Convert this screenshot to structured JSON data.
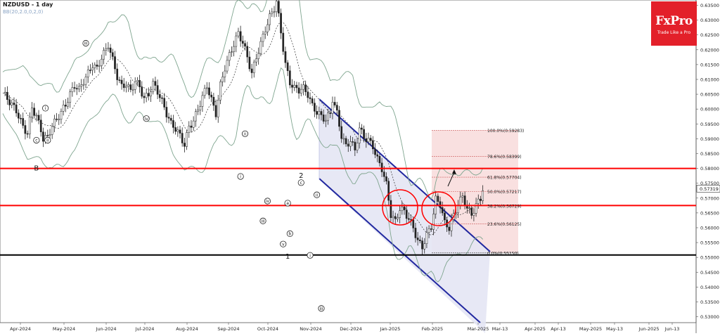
{
  "header": {
    "title": "NZDUSD - 1 day",
    "indicator": "BB(20,2.0,0,2,0)"
  },
  "logo": {
    "brand": "FxPro",
    "tagline": "Trade Like a Pro"
  },
  "colors": {
    "bull": "#1c8a1c",
    "bear": "#c01b1b",
    "candle": "#222222",
    "band": "#7fa58f",
    "sr": "#ff0000",
    "channel": "#2128a0",
    "channel_fill": "#e4e6f4",
    "fib_fill": "#f8dada"
  },
  "chart_data": {
    "type": "candlestick",
    "title": "NZDUSD - 1 day",
    "ylim": [
      0.528,
      0.6363
    ],
    "y_ticks": [
      "0.63500",
      "0.63000",
      "0.62500",
      "0.62000",
      "0.61500",
      "0.61000",
      "0.60500",
      "0.60000",
      "0.59500",
      "0.59000",
      "0.58500",
      "0.58000",
      "0.57500",
      "0.57000",
      "0.56500",
      "0.56000",
      "0.55500",
      "0.55000",
      "0.54500",
      "0.54000",
      "0.53500",
      "0.53000"
    ],
    "x_labels": [
      "Apr-2024",
      "May-2024",
      "Jun-2024",
      "Jul-2024",
      "Aug-2024",
      "Sep-2024",
      "Oct-2024",
      "Nov-2024",
      "Dec-2024",
      "Jan-2025",
      "Feb-2025",
      "Mar-2025",
      "Mar-13",
      "Apr-2025",
      "Apr-13",
      "May-2025",
      "May-13",
      "Jun-2025",
      "Jun-13"
    ],
    "current_price": "0.57319",
    "price_path": [
      [
        0,
        0.6055
      ],
      [
        3,
        0.6025
      ],
      [
        6,
        0.5995
      ],
      [
        9,
        0.594
      ],
      [
        11,
        0.5918
      ],
      [
        13,
        0.6005
      ],
      [
        15,
        0.5975
      ],
      [
        17,
        0.593
      ],
      [
        18,
        0.59
      ],
      [
        20,
        0.5905
      ],
      [
        22,
        0.5945
      ],
      [
        24,
        0.5965
      ],
      [
        26,
        0.599
      ],
      [
        28,
        0.6015
      ],
      [
        30,
        0.605
      ],
      [
        32,
        0.608
      ],
      [
        34,
        0.6065
      ],
      [
        36,
        0.6095
      ],
      [
        38,
        0.612
      ],
      [
        40,
        0.615
      ],
      [
        42,
        0.6135
      ],
      [
        44,
        0.6175
      ],
      [
        46,
        0.62
      ],
      [
        47,
        0.6218
      ],
      [
        49,
        0.6165
      ],
      [
        51,
        0.611
      ],
      [
        53,
        0.6075
      ],
      [
        55,
        0.6085
      ],
      [
        57,
        0.606
      ],
      [
        59,
        0.6095
      ],
      [
        61,
        0.6075
      ],
      [
        63,
        0.6035
      ],
      [
        65,
        0.605
      ],
      [
        67,
        0.6085
      ],
      [
        69,
        0.606
      ],
      [
        71,
        0.6025
      ],
      [
        73,
        0.5985
      ],
      [
        75,
        0.595
      ],
      [
        77,
        0.5935
      ],
      [
        79,
        0.591
      ],
      [
        81,
        0.588
      ],
      [
        83,
        0.594
      ],
      [
        85,
        0.596
      ],
      [
        87,
        0.6
      ],
      [
        89,
        0.604
      ],
      [
        91,
        0.608
      ],
      [
        93,
        0.603
      ],
      [
        95,
        0.5985
      ],
      [
        97,
        0.608
      ],
      [
        99,
        0.614
      ],
      [
        101,
        0.618
      ],
      [
        103,
        0.622
      ],
      [
        105,
        0.6255
      ],
      [
        107,
        0.6225
      ],
      [
        109,
        0.6175
      ],
      [
        111,
        0.612
      ],
      [
        113,
        0.6175
      ],
      [
        115,
        0.622
      ],
      [
        117,
        0.627
      ],
      [
        119,
        0.631
      ],
      [
        121,
        0.634
      ],
      [
        122,
        0.6363
      ],
      [
        124,
        0.626
      ],
      [
        126,
        0.615
      ],
      [
        128,
        0.609
      ],
      [
        130,
        0.607
      ],
      [
        132,
        0.6065
      ],
      [
        134,
        0.607
      ],
      [
        136,
        0.605
      ],
      [
        138,
        0.601
      ],
      [
        140,
        0.599
      ],
      [
        142,
        0.5975
      ],
      [
        144,
        0.5965
      ],
      [
        146,
        0.5985
      ],
      [
        147,
        0.6035
      ],
      [
        149,
        0.5985
      ],
      [
        151,
        0.591
      ],
      [
        153,
        0.5875
      ],
      [
        155,
        0.5895
      ],
      [
        157,
        0.586
      ],
      [
        159,
        0.5935
      ],
      [
        161,
        0.5905
      ],
      [
        163,
        0.5895
      ],
      [
        165,
        0.5875
      ],
      [
        167,
        0.583
      ],
      [
        169,
        0.58
      ],
      [
        171,
        0.5745
      ],
      [
        173,
        0.5645
      ],
      [
        175,
        0.562
      ],
      [
        177,
        0.5665
      ],
      [
        179,
        0.5655
      ],
      [
        181,
        0.563
      ],
      [
        183,
        0.56
      ],
      [
        185,
        0.5555
      ],
      [
        187,
        0.5535
      ],
      [
        189,
        0.5575
      ],
      [
        191,
        0.5605
      ],
      [
        193,
        0.5695
      ],
      [
        195,
        0.568
      ],
      [
        197,
        0.5615
      ],
      [
        199,
        0.56
      ],
      [
        201,
        0.564
      ],
      [
        203,
        0.568
      ],
      [
        205,
        0.5705
      ],
      [
        207,
        0.5665
      ],
      [
        209,
        0.5645
      ],
      [
        211,
        0.5675
      ],
      [
        213,
        0.57
      ],
      [
        214,
        0.5732
      ]
    ],
    "support_lines": [
      0.58,
      0.5675
    ],
    "base_line": 0.5508,
    "fib_levels": [
      {
        "label": "100.0%(0.59283)",
        "value": 0.59283
      },
      {
        "label": "78.6%(0.58399)",
        "value": 0.58399
      },
      {
        "label": "61.8%(0.57704)",
        "value": 0.57704
      },
      {
        "label": "50.0%(0.57217)",
        "value": 0.57217
      },
      {
        "label": "38.2%(0.56729)",
        "value": 0.56729
      },
      {
        "label": "23.6%(0.56125)",
        "value": 0.56125
      },
      {
        "label": "0.0%(0.55150)",
        "value": 0.5515
      }
    ],
    "wave_labels": [
      {
        "text": "ii",
        "bar": 20,
        "price": 0.5895
      },
      {
        "text": "i",
        "bar": 19,
        "price": 0.6003
      },
      {
        "text": "c",
        "bar": 15,
        "price": 0.5895
      },
      {
        "text": "B",
        "bar": 15,
        "price": 0.5802,
        "plain": true
      },
      {
        "text": "iii",
        "bar": 37,
        "price": 0.6222
      },
      {
        "text": "iv",
        "bar": 64,
        "price": 0.5968
      },
      {
        "text": "i",
        "bar": 106,
        "price": 0.5773
      },
      {
        "text": "ii",
        "bar": 108,
        "price": 0.5917
      },
      {
        "text": "iii",
        "bar": 116,
        "price": 0.5623
      },
      {
        "text": "iv",
        "bar": 118,
        "price": 0.569
      },
      {
        "text": "a",
        "bar": 127,
        "price": 0.5683
      },
      {
        "text": "b",
        "bar": 128,
        "price": 0.558
      },
      {
        "text": "v",
        "bar": 125,
        "price": 0.5545
      },
      {
        "text": "c",
        "bar": 133,
        "price": 0.5752
      },
      {
        "text": "2",
        "bar": 133,
        "price": 0.5778,
        "plain": true
      },
      {
        "text": "1",
        "bar": 127,
        "price": 0.5505,
        "plain": true
      },
      {
        "text": "i",
        "bar": 137,
        "price": 0.5507
      },
      {
        "text": "ii",
        "bar": 140,
        "price": 0.5711
      },
      {
        "text": "iii",
        "bar": 142,
        "price": 0.5328
      }
    ]
  }
}
